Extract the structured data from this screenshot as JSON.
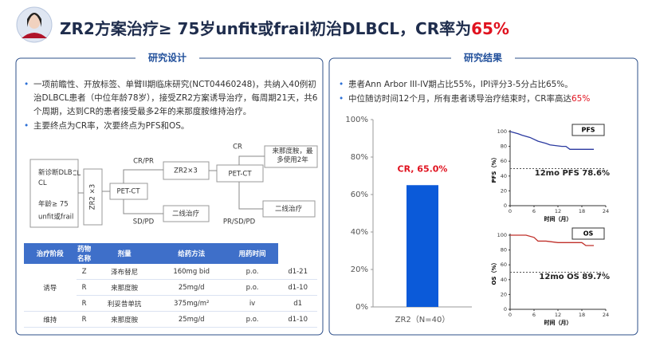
{
  "header": {
    "title": "ZR2方案治疗≥ 75岁unfit或frail初治DLBCL，CR率为",
    "title_highlight": "65%"
  },
  "design": {
    "heading": "研究设计",
    "bullets": [
      "一项前瞻性、开放标签、单臂II期临床研究(NCT04460248)，共纳入40例初治DLBCL患者（中位年龄78岁），接受ZR2方案诱导治疗，每周期21天，共6个周期，达到CR的患者接受最多2年的来那度胺维持治疗。",
      "主要终点为CR率，次要终点为PFS和OS。"
    ],
    "flow": {
      "patient": [
        "新诊断DLBCL",
        "年龄≥ 75",
        "unfit或frail"
      ],
      "induction": "ZR2 ×3",
      "petct1": "PET-CT",
      "branch_up": "CR/PR",
      "induction2": "ZR2×3",
      "petct2": "PET-CT",
      "cr": "CR",
      "maintenance": "来那度胺，最多使用2年",
      "branch_down": "SD/PD",
      "second_line_1": "二线治疗",
      "branch_down2": "PR/SD/PD",
      "second_line_2": "二线治疗"
    },
    "table": {
      "columns": [
        "治疗阶段",
        "药物名称",
        "剂量",
        "给药方法",
        "用药时间"
      ],
      "rows": [
        {
          "phase": "诱导",
          "drugs": [
            [
              "Z",
              "泽布替尼",
              "160mg bid",
              "p.o.",
              "d1-21"
            ],
            [
              "R",
              "来那度胺",
              "25mg/d",
              "p.o.",
              "d1-10"
            ],
            [
              "R",
              "利妥昔单抗",
              "375mg/m²",
              "iv",
              "d1"
            ]
          ]
        },
        {
          "phase": "维持",
          "drugs": [
            [
              "R",
              "来那度胺",
              "25mg/d",
              "p.o.",
              "d1-10"
            ]
          ]
        }
      ]
    }
  },
  "results": {
    "heading": "研究结果",
    "bullet1": "患者Ann Arbor III-IV期占比55%，IPI评分3-5分占比65%。",
    "bullet2": "中位随访时间12个月，所有患者诱导治疗结束时，CR率高达",
    "bullet2_highlight": "65%"
  },
  "chart_data": [
    {
      "type": "bar",
      "categories": [
        "ZR2（N=40）"
      ],
      "values": [
        65
      ],
      "value_labels": [
        "CR, 65.0%"
      ],
      "color": "#0b5ad9",
      "label_color": "#e0121f",
      "ylim": [
        0,
        100
      ],
      "yticks": [
        {
          "value": 0,
          "label": "0%"
        },
        {
          "value": 20,
          "label": "20%"
        },
        {
          "value": 40,
          "label": "40%"
        },
        {
          "value": 60,
          "label": "60%"
        },
        {
          "value": 80,
          "label": "80%"
        },
        {
          "value": 100,
          "label": "100%"
        }
      ]
    },
    {
      "type": "line",
      "title": "PFS",
      "annotation": "12mo PFS 78.6%",
      "ylabel": "PFS（%）",
      "xlabel": "时间（月）",
      "x": [
        0,
        2,
        3,
        5,
        7,
        9,
        10,
        13,
        14,
        15,
        17,
        21
      ],
      "values": [
        100,
        97,
        95,
        92,
        87,
        84,
        82,
        80,
        80,
        76,
        76,
        76
      ],
      "color": "#2b3aa0",
      "xlim": [
        0,
        24
      ],
      "ylim": [
        0,
        100
      ],
      "xticks": [
        0,
        6,
        12,
        18,
        24
      ],
      "yticks": [
        0,
        20,
        40,
        60,
        80,
        100
      ],
      "reference": 50
    },
    {
      "type": "line",
      "title": "OS",
      "annotation": "12mo OS 89.7%",
      "ylabel": "OS（%）",
      "xlabel": "时间（月）",
      "x": [
        0,
        4,
        6,
        7,
        9,
        12,
        15,
        18,
        19,
        21
      ],
      "values": [
        100,
        100,
        97,
        92,
        92,
        90,
        90,
        90,
        86,
        86
      ],
      "color": "#c0302a",
      "xlim": [
        0,
        24
      ],
      "ylim": [
        0,
        100
      ],
      "xticks": [
        0,
        6,
        12,
        18,
        24
      ],
      "yticks": [
        0,
        20,
        40,
        60,
        80,
        100
      ],
      "reference": 50
    }
  ]
}
